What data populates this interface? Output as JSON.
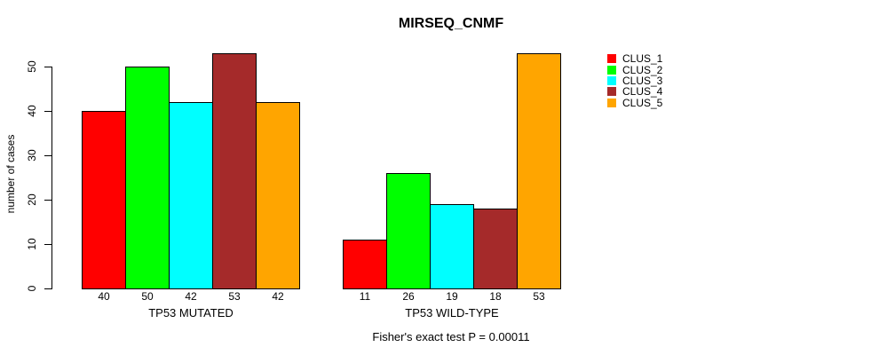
{
  "title": "MIRSEQ_CNMF",
  "chart_data": {
    "type": "bar",
    "title": "MIRSEQ_CNMF",
    "ylabel": "number of cases",
    "ylim": [
      0,
      50
    ],
    "yticks": [
      0,
      10,
      20,
      30,
      40,
      50
    ],
    "grid": false,
    "legend_position": "right-outside",
    "series_names": [
      "CLUS_1",
      "CLUS_2",
      "CLUS_3",
      "CLUS_4",
      "CLUS_5"
    ],
    "series_colors": [
      "#FF0000",
      "#00FF00",
      "#00FFFF",
      "#A52A2A",
      "#FFA500"
    ],
    "groups": [
      {
        "label": "TP53 MUTATED",
        "values": [
          40,
          50,
          42,
          53,
          42
        ]
      },
      {
        "label": "TP53 WILD-TYPE",
        "values": [
          11,
          26,
          19,
          18,
          53
        ]
      }
    ],
    "bar_value_labels_shown": true,
    "annotation": "Fisher's exact test P = 0.00011"
  },
  "legend": {
    "items": [
      {
        "label": "CLUS_1",
        "color": "#FF0000"
      },
      {
        "label": "CLUS_2",
        "color": "#00FF00"
      },
      {
        "label": "CLUS_3",
        "color": "#00FFFF"
      },
      {
        "label": "CLUS_4",
        "color": "#A52A2A"
      },
      {
        "label": "CLUS_5",
        "color": "#FFA500"
      }
    ]
  }
}
